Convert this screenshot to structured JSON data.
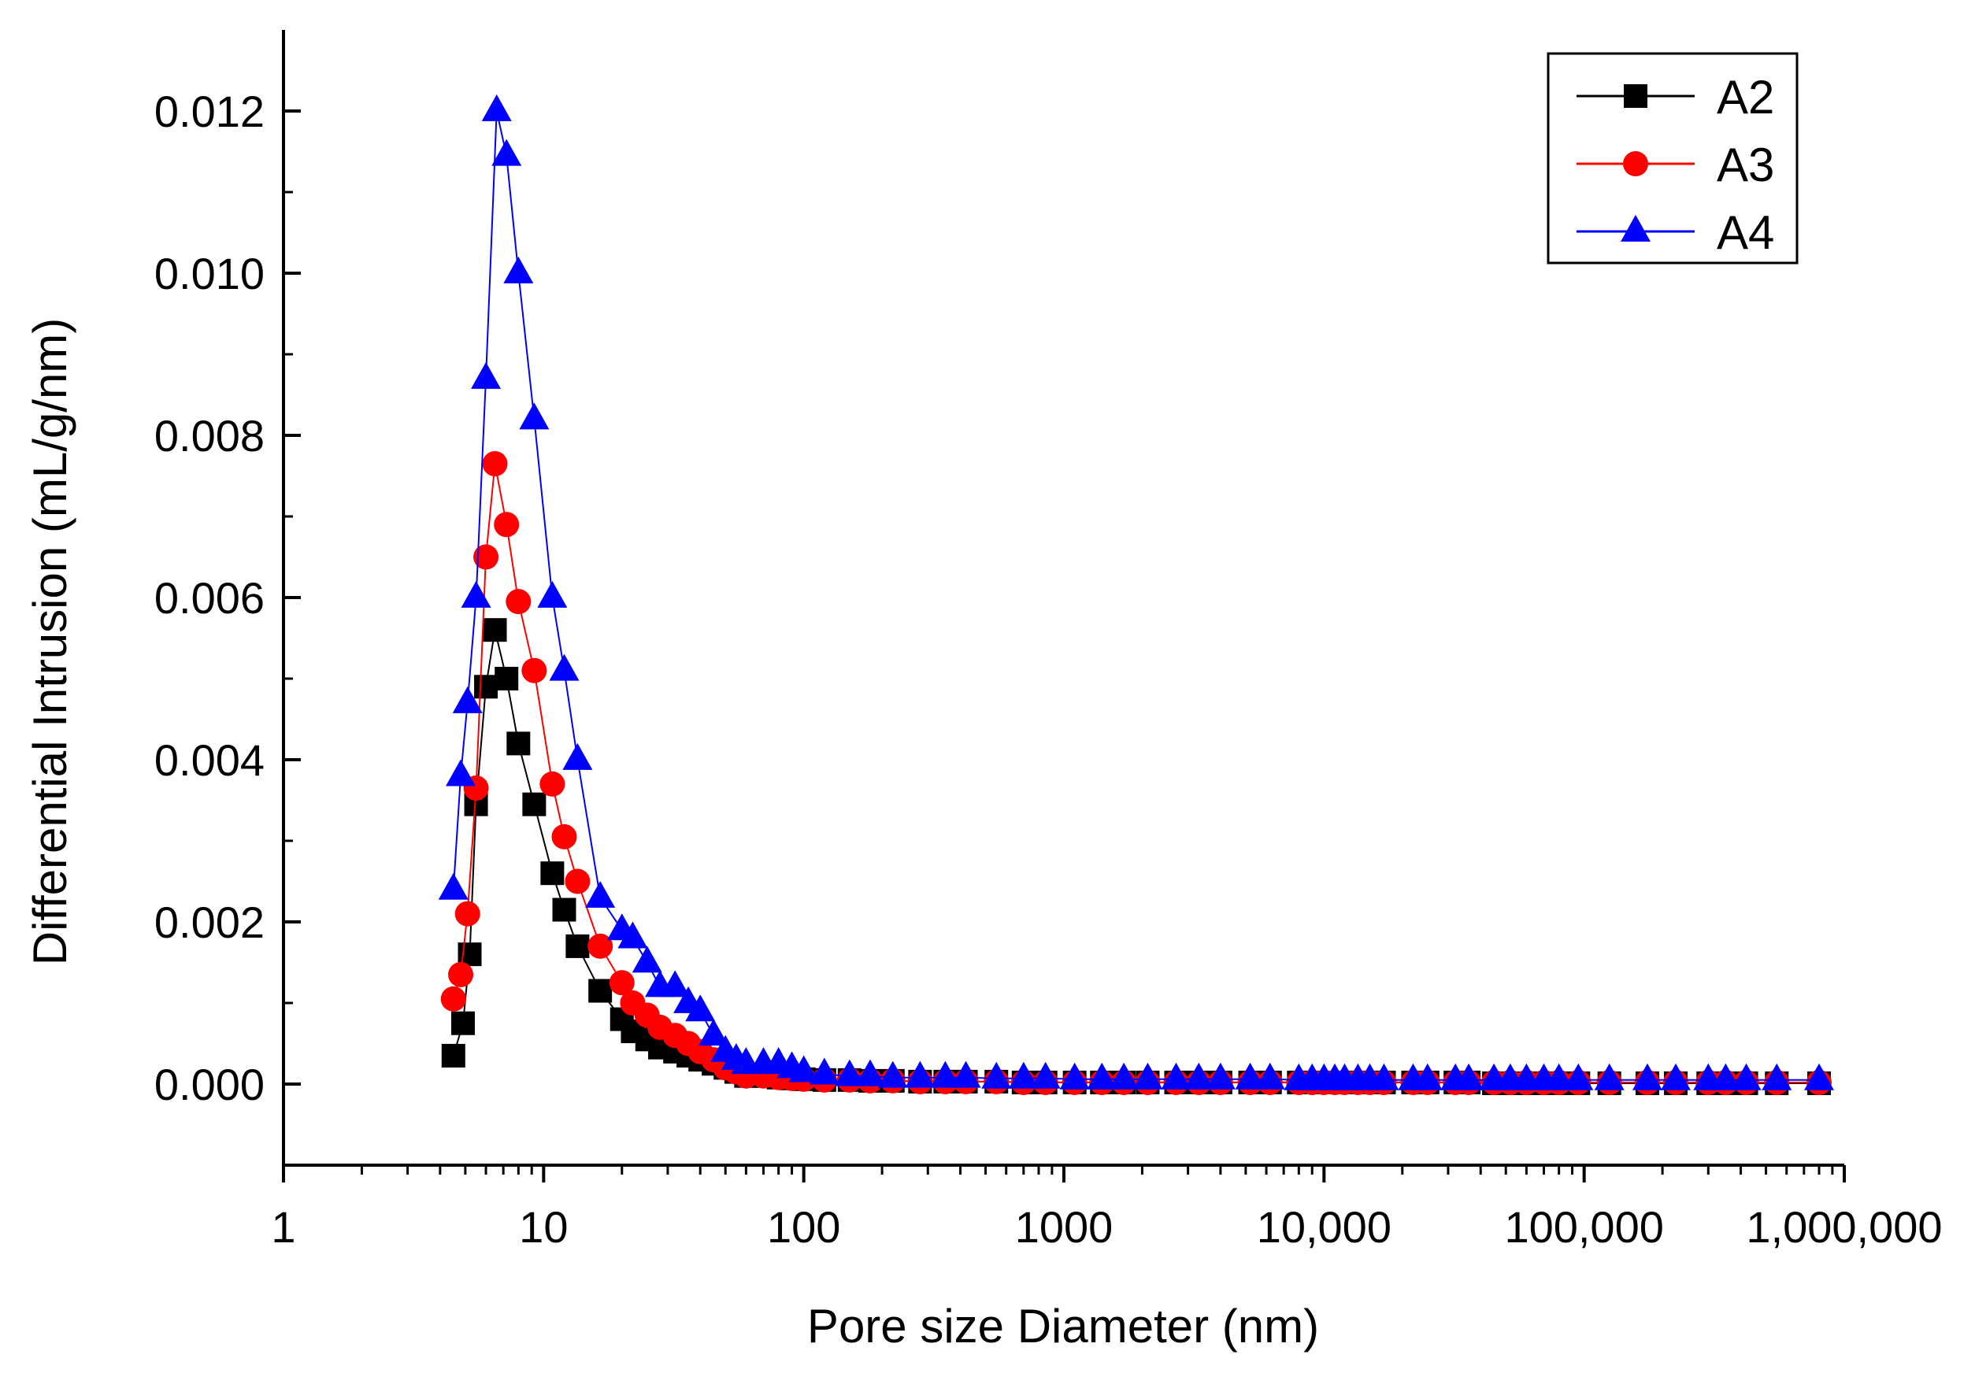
{
  "chart_data": {
    "type": "scatter",
    "title": "",
    "xlabel": "Pore size Diameter (nm)",
    "ylabel": "Differential Intrusion (mL/g/nm)",
    "xscale": "log",
    "xlim": [
      1,
      1000000
    ],
    "ylim": [
      -0.001,
      0.013
    ],
    "legend_position": "top-right",
    "grid": false,
    "x_ticks": [
      {
        "value": 1,
        "label": "1"
      },
      {
        "value": 10,
        "label": "10"
      },
      {
        "value": 100,
        "label": "100"
      },
      {
        "value": 1000,
        "label": "1000"
      },
      {
        "value": 10000,
        "label": "10,000"
      },
      {
        "value": 100000,
        "label": "100,000"
      },
      {
        "value": 1000000,
        "label": "1,000,000"
      }
    ],
    "y_ticks": [
      {
        "value": 0.0,
        "label": "0.000"
      },
      {
        "value": 0.002,
        "label": "0.002"
      },
      {
        "value": 0.004,
        "label": "0.004"
      },
      {
        "value": 0.006,
        "label": "0.006"
      },
      {
        "value": 0.008,
        "label": "0.008"
      },
      {
        "value": 0.01,
        "label": "0.010"
      },
      {
        "value": 0.012,
        "label": "0.012"
      }
    ],
    "series": [
      {
        "name": "A2",
        "color": "#000000",
        "marker": "square",
        "x": [
          4.5,
          4.9,
          5.2,
          5.5,
          6.0,
          6.5,
          7.2,
          8.0,
          9.2,
          10.8,
          12.0,
          13.5,
          16.5,
          20,
          22,
          25,
          28,
          32,
          36,
          40,
          45,
          50,
          55,
          60,
          70,
          80,
          90,
          100,
          120,
          150,
          180,
          220,
          280,
          350,
          420,
          550,
          700,
          850,
          1100,
          1400,
          1700,
          2100,
          2700,
          3300,
          4000,
          5200,
          6200,
          8000,
          9000,
          10000,
          11000,
          12000,
          13500,
          15000,
          17000,
          22000,
          25000,
          32000,
          36000,
          45000,
          52000,
          60000,
          70000,
          80000,
          95000,
          125000,
          175000,
          225000,
          300000,
          350000,
          420000,
          550000,
          800000
        ],
        "y": [
          0.00035,
          0.00075,
          0.0016,
          0.00345,
          0.0049,
          0.0056,
          0.005,
          0.0042,
          0.00345,
          0.0026,
          0.00215,
          0.0017,
          0.00115,
          0.0008,
          0.00065,
          0.00055,
          0.00045,
          0.0004,
          0.00035,
          0.0003,
          0.00025,
          0.0002,
          0.00015,
          0.0001,
          0.0001,
          8e-05,
          7e-05,
          6e-05,
          5e-05,
          5e-05,
          4e-05,
          4e-05,
          3e-05,
          3e-05,
          3e-05,
          3e-05,
          2e-05,
          2e-05,
          2e-05,
          2e-05,
          2e-05,
          2e-05,
          2e-05,
          2e-05,
          2e-05,
          2e-05,
          2e-05,
          2e-05,
          2e-05,
          2e-05,
          2e-05,
          2e-05,
          2e-05,
          2e-05,
          2e-05,
          2e-05,
          2e-05,
          2e-05,
          2e-05,
          1e-05,
          1e-05,
          1e-05,
          1e-05,
          1e-05,
          1e-05,
          1e-05,
          1e-05,
          1e-05,
          1e-05,
          1e-05,
          1e-05,
          1e-05,
          1e-05
        ]
      },
      {
        "name": "A3",
        "color": "#ff0000",
        "marker": "circle",
        "x": [
          4.5,
          4.8,
          5.1,
          5.5,
          6.0,
          6.5,
          7.2,
          8.0,
          9.2,
          10.8,
          12.0,
          13.5,
          16.5,
          20,
          22,
          25,
          28,
          32,
          36,
          40,
          45,
          50,
          55,
          60,
          70,
          80,
          90,
          100,
          120,
          150,
          180,
          220,
          280,
          350,
          420,
          550,
          700,
          850,
          1100,
          1400,
          1700,
          2100,
          2700,
          3300,
          4000,
          5200,
          6200,
          8000,
          9000,
          10000,
          11000,
          12000,
          13500,
          15000,
          17000,
          22000,
          25000,
          32000,
          36000,
          45000,
          52000,
          60000,
          70000,
          80000,
          95000,
          125000,
          175000,
          225000,
          300000,
          350000,
          420000,
          550000,
          800000
        ],
        "y": [
          0.00105,
          0.00135,
          0.0021,
          0.00365,
          0.0065,
          0.00765,
          0.0069,
          0.00595,
          0.0051,
          0.0037,
          0.00305,
          0.0025,
          0.0017,
          0.00125,
          0.001,
          0.00085,
          0.0007,
          0.0006,
          0.0005,
          0.0004,
          0.0003,
          0.0002,
          0.00015,
          0.0001,
          0.0001,
          8e-05,
          7e-05,
          6e-05,
          5e-05,
          5e-05,
          4e-05,
          4e-05,
          3e-05,
          3e-05,
          3e-05,
          3e-05,
          2e-05,
          2e-05,
          2e-05,
          2e-05,
          2e-05,
          2e-05,
          2e-05,
          2e-05,
          2e-05,
          2e-05,
          2e-05,
          2e-05,
          2e-05,
          2e-05,
          2e-05,
          2e-05,
          2e-05,
          2e-05,
          2e-05,
          2e-05,
          2e-05,
          2e-05,
          2e-05,
          2e-05,
          2e-05,
          2e-05,
          2e-05,
          2e-05,
          2e-05,
          2e-05,
          2e-05,
          2e-05,
          2e-05,
          2e-05,
          2e-05,
          2e-05,
          2e-05
        ]
      },
      {
        "name": "A4",
        "color": "#0000ff",
        "marker": "triangle",
        "x": [
          4.5,
          4.8,
          5.1,
          5.5,
          6.0,
          6.6,
          7.2,
          8.0,
          9.2,
          10.8,
          12.0,
          13.5,
          16.5,
          20,
          22,
          25,
          28,
          32,
          36,
          40,
          45,
          50,
          55,
          60,
          70,
          80,
          90,
          100,
          120,
          150,
          180,
          220,
          280,
          350,
          420,
          550,
          700,
          850,
          1100,
          1400,
          1700,
          2100,
          2700,
          3300,
          4000,
          5200,
          6200,
          8000,
          9000,
          10000,
          11000,
          12000,
          13500,
          15000,
          17000,
          22000,
          25000,
          32000,
          36000,
          45000,
          52000,
          60000,
          70000,
          80000,
          95000,
          125000,
          175000,
          225000,
          300000,
          350000,
          420000,
          550000,
          800000
        ],
        "y": [
          0.0024,
          0.0038,
          0.0047,
          0.006,
          0.0087,
          0.012,
          0.01145,
          0.01,
          0.0082,
          0.006,
          0.0051,
          0.004,
          0.0023,
          0.0019,
          0.0018,
          0.0015,
          0.0012,
          0.0012,
          0.001,
          0.0009,
          0.0006,
          0.0004,
          0.0003,
          0.00025,
          0.00025,
          0.00025,
          0.0002,
          0.00015,
          0.00012,
          0.0001,
          0.0001,
          8e-05,
          8e-05,
          8e-05,
          8e-05,
          7e-05,
          7e-05,
          7e-05,
          6e-05,
          6e-05,
          6e-05,
          6e-05,
          6e-05,
          6e-05,
          6e-05,
          6e-05,
          6e-05,
          5e-05,
          5e-05,
          5e-05,
          5e-05,
          5e-05,
          5e-05,
          5e-05,
          5e-05,
          5e-05,
          5e-05,
          5e-05,
          5e-05,
          5e-05,
          5e-05,
          5e-05,
          5e-05,
          5e-05,
          5e-05,
          5e-05,
          5e-05,
          5e-05,
          5e-05,
          5e-05,
          5e-05,
          5e-05,
          5e-05
        ]
      }
    ]
  }
}
